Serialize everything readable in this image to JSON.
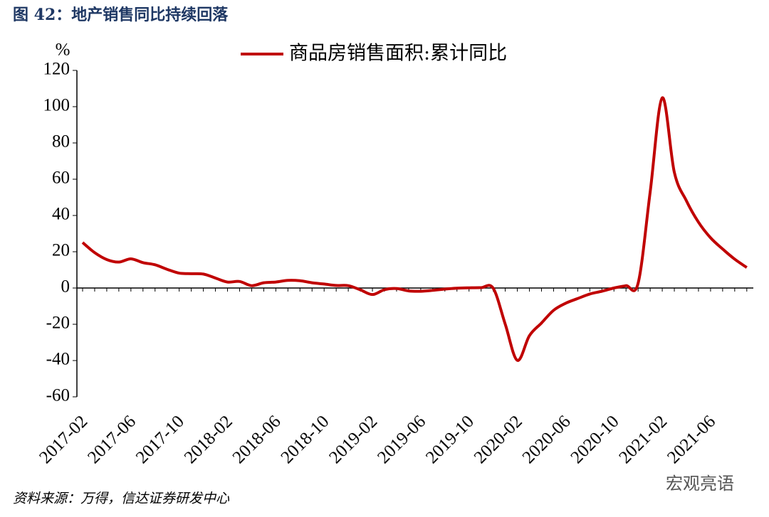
{
  "chart_data": {
    "type": "line",
    "title": "图 42：地产销售同比持续回落",
    "y_unit": "%",
    "source": "资料来源：万得，信达证券研发中心",
    "watermark": "宏观亮语",
    "categories": [
      "2017-02",
      null,
      null,
      null,
      "2017-06",
      null,
      null,
      null,
      "2017-10",
      null,
      null,
      null,
      "2018-02",
      null,
      null,
      null,
      "2018-06",
      null,
      null,
      null,
      "2018-10",
      null,
      null,
      null,
      "2019-02",
      null,
      null,
      null,
      "2019-06",
      null,
      null,
      null,
      "2019-10",
      null,
      null,
      null,
      "2020-02",
      null,
      null,
      null,
      "2020-06",
      null,
      null,
      null,
      "2020-10",
      null,
      null,
      null,
      "2021-02",
      null,
      null,
      null,
      "2021-06",
      null,
      null,
      null
    ],
    "series": [
      {
        "name": "商品房销售面积:累计同比",
        "color": "#c00000",
        "values": [
          25.1,
          19.5,
          15.7,
          14.3,
          16.1,
          14.0,
          12.8,
          10.3,
          8.2,
          7.9,
          7.7,
          5.5,
          3.3,
          3.6,
          1.3,
          2.9,
          3.3,
          4.2,
          4.0,
          2.9,
          2.2,
          1.4,
          1.3,
          -1.0,
          -3.6,
          -0.9,
          -0.3,
          -1.6,
          -1.8,
          -1.3,
          -0.6,
          -0.1,
          0.1,
          0.2,
          -0.1,
          -20.0,
          -39.9,
          -26.3,
          -19.3,
          -12.3,
          -8.4,
          -5.8,
          -3.3,
          -1.8,
          0.0,
          1.3,
          2.6,
          53.0,
          104.9,
          63.8,
          48.1,
          36.3,
          27.7,
          21.5,
          15.9,
          11.3
        ]
      }
    ],
    "ylim": [
      -60,
      120
    ],
    "yticks": [
      -60,
      -40,
      -20,
      0,
      20,
      40,
      60,
      80,
      100,
      120
    ],
    "legend": "top"
  }
}
